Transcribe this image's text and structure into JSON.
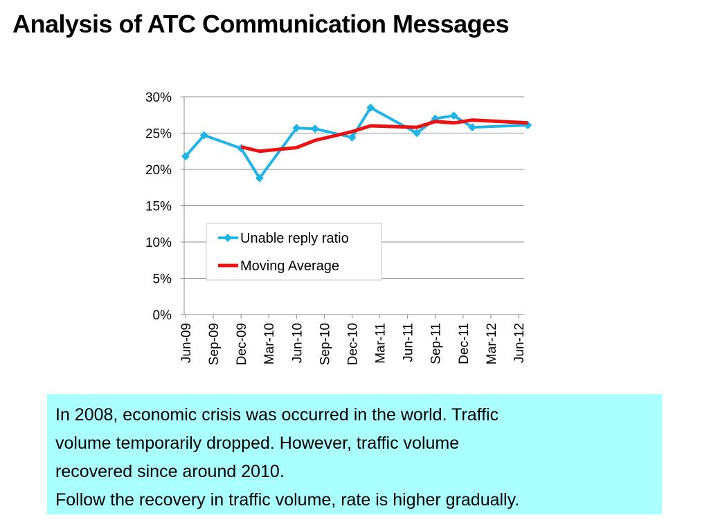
{
  "title": "Analysis of ATC Communication Messages",
  "note": {
    "lines": [
      "In 2008, economic crisis was occurred in the world. Traffic",
      "volume temporarily dropped. However, traffic volume",
      "recovered since around 2010.",
      "Follow the recovery in traffic volume, rate is higher gradually."
    ],
    "background": "#aaffff"
  },
  "chart_data": {
    "type": "line",
    "title": "",
    "xlabel": "",
    "ylabel": "",
    "ylim": [
      0,
      0.3
    ],
    "yticks": [
      "0%",
      "5%",
      "10%",
      "15%",
      "20%",
      "25%",
      "30%"
    ],
    "x_tick_labels": [
      "Jun-09",
      "Sep-09",
      "Dec-09",
      "Mar-10",
      "Jun-10",
      "Sep-10",
      "Dec-10",
      "Mar-11",
      "Jun-11",
      "Sep-11",
      "Dec-11",
      "Mar-12",
      "Jun-12"
    ],
    "grid": "horizontal",
    "legend_position": "center-left",
    "series": [
      {
        "name": "Unable reply ratio",
        "color": "#1eb4e6",
        "marker": "diamond",
        "points": [
          {
            "x": "Jun-09",
            "y": 0.218
          },
          {
            "x": "Aug-09",
            "y": 0.247
          },
          {
            "x": "Dec-09",
            "y": 0.229
          },
          {
            "x": "Feb-10",
            "y": 0.188
          },
          {
            "x": "Jun-10",
            "y": 0.257
          },
          {
            "x": "Aug-10",
            "y": 0.256
          },
          {
            "x": "Dec-10",
            "y": 0.244
          },
          {
            "x": "Feb-11",
            "y": 0.285
          },
          {
            "x": "Jul-11",
            "y": 0.25
          },
          {
            "x": "Sep-11",
            "y": 0.27
          },
          {
            "x": "Nov-11",
            "y": 0.274
          },
          {
            "x": "Jan-12",
            "y": 0.258
          },
          {
            "x": "Jul-12",
            "y": 0.261
          }
        ]
      },
      {
        "name": "Moving Average",
        "color": "#ee1111",
        "marker": "none",
        "points": [
          {
            "x": "Dec-09",
            "y": 0.231
          },
          {
            "x": "Feb-10",
            "y": 0.225
          },
          {
            "x": "Jun-10",
            "y": 0.23
          },
          {
            "x": "Aug-10",
            "y": 0.24
          },
          {
            "x": "Dec-10",
            "y": 0.252
          },
          {
            "x": "Feb-11",
            "y": 0.26
          },
          {
            "x": "Jul-11",
            "y": 0.258
          },
          {
            "x": "Sep-11",
            "y": 0.266
          },
          {
            "x": "Nov-11",
            "y": 0.264
          },
          {
            "x": "Jan-12",
            "y": 0.268
          },
          {
            "x": "Jul-12",
            "y": 0.264
          }
        ]
      }
    ]
  }
}
